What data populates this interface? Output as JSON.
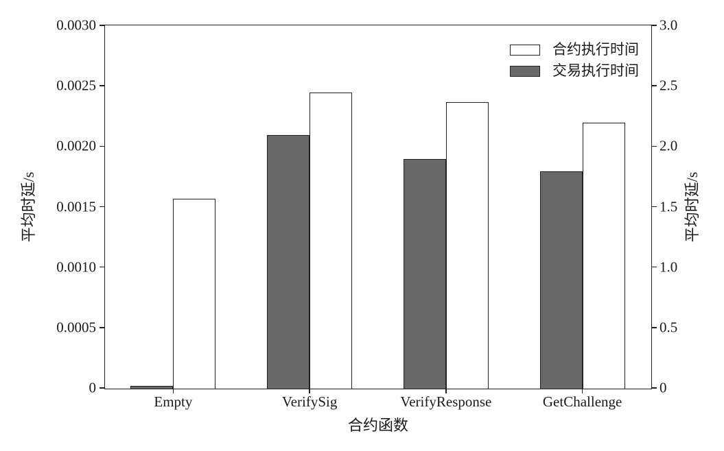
{
  "figure": {
    "background_color": "#ffffff",
    "line_color": "#231f20",
    "text_color": "#1a1a1a"
  },
  "chart_data": {
    "type": "bar",
    "title": "",
    "xlabel": "合约函数",
    "categories": [
      "Empty",
      "VerifySig",
      "VerifyResponse",
      "GetChallenge"
    ],
    "series": [
      {
        "name": "交易执行时间",
        "axis": "right",
        "fill": "#686868",
        "values": [
          0.02,
          2.1,
          1.9,
          1.8
        ]
      },
      {
        "name": "合约执行时间",
        "axis": "left",
        "fill": "#ffffff",
        "values": [
          0.00157,
          0.00245,
          0.00237,
          0.0022
        ]
      }
    ],
    "left_axis": {
      "label": "平均时延/s",
      "min": 0,
      "max": 0.003,
      "ticks": [
        "0",
        "0.0005",
        "0.0010",
        "0.0015",
        "0.0020",
        "0.0025",
        "0.0030"
      ]
    },
    "right_axis": {
      "label": "平均时延/s",
      "min": 0,
      "max": 3.0,
      "ticks": [
        "0",
        "0.5",
        "1.0",
        "1.5",
        "2.0",
        "2.5",
        "3.0"
      ]
    },
    "legend": [
      {
        "label": "合约执行时间",
        "fill": "#ffffff"
      },
      {
        "label": "交易执行时间",
        "fill": "#686868"
      }
    ],
    "legend_position": "top-right",
    "grid": false
  }
}
